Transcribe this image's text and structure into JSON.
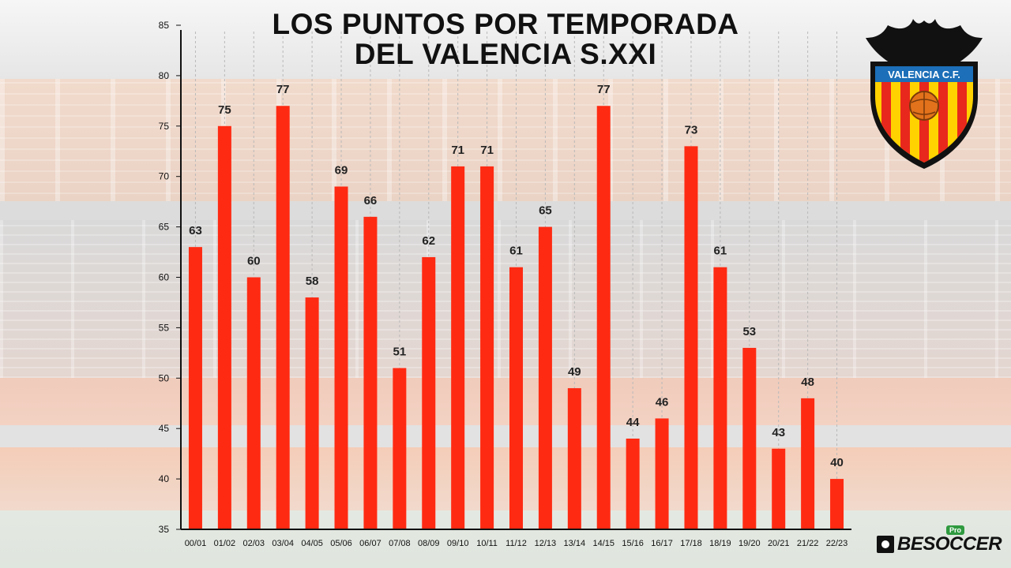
{
  "title_line1": "LOS PUNTOS POR TEMPORADA",
  "title_line2": "DEL VALENCIA S.XXI",
  "crest_text": "VALENCIA C.F.",
  "brand": {
    "name": "BESOCCER",
    "badge": "Pro"
  },
  "colors": {
    "bar": "#ff2a12",
    "text": "#111111",
    "axis": "#111111"
  },
  "chart_data": {
    "type": "bar",
    "title": "LOS PUNTOS POR TEMPORADA DEL VALENCIA S.XXI",
    "xlabel": "",
    "ylabel": "",
    "ylim": [
      35,
      85
    ],
    "yticks": [
      35,
      40,
      45,
      50,
      55,
      60,
      65,
      70,
      75,
      80,
      85
    ],
    "grid": "vertical dashed",
    "categories": [
      "00/01",
      "01/02",
      "02/03",
      "03/04",
      "04/05",
      "05/06",
      "06/07",
      "07/08",
      "08/09",
      "09/10",
      "10/11",
      "11/12",
      "12/13",
      "13/14",
      "14/15",
      "15/16",
      "16/17",
      "17/18",
      "18/19",
      "19/20",
      "20/21",
      "21/22",
      "22/23"
    ],
    "values": [
      63,
      75,
      60,
      77,
      58,
      69,
      66,
      51,
      62,
      71,
      71,
      61,
      65,
      49,
      77,
      44,
      46,
      73,
      61,
      53,
      43,
      48,
      40
    ]
  }
}
